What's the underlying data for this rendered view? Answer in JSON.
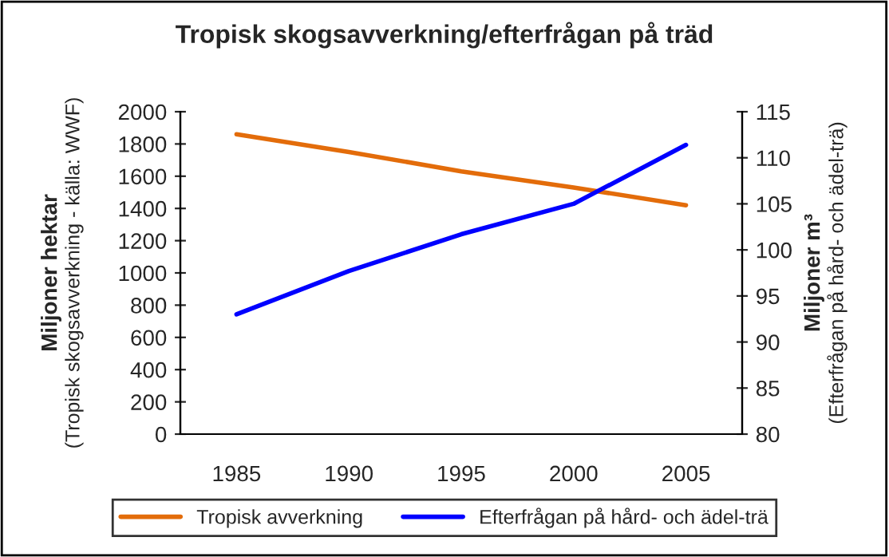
{
  "chart_data": {
    "type": "line",
    "title": "Tropisk skogsavverkning/efterfrågan på träd",
    "categories": [
      "1985",
      "1990",
      "1995",
      "2000",
      "2005"
    ],
    "ylabel": "Miljoner hektar\n(Tropisk skogsavverkning - källa: WWF)",
    "y2label": "Miljoner m³\n(Efterfrågan på hård- och ädel-trä)",
    "ylim": [
      0,
      2000
    ],
    "yticks": [
      0,
      200,
      400,
      600,
      800,
      1000,
      1200,
      1400,
      1600,
      1800,
      2000
    ],
    "y2lim": [
      80,
      115
    ],
    "y2ticks": [
      80,
      85,
      90,
      95,
      100,
      105,
      110,
      115
    ],
    "series": [
      {
        "name": "Tropisk avverkning",
        "color": "#e36c0a",
        "values": [
          1860,
          1750,
          1630,
          1530,
          1420
        ]
      },
      {
        "name": "Efterfrågan på hård- och ädel-trä",
        "color": "#0000ff",
        "axis": "y2",
        "values": [
          93,
          97.7,
          101.7,
          105,
          111.4
        ]
      }
    ],
    "legend": "bottom",
    "grid": false
  }
}
